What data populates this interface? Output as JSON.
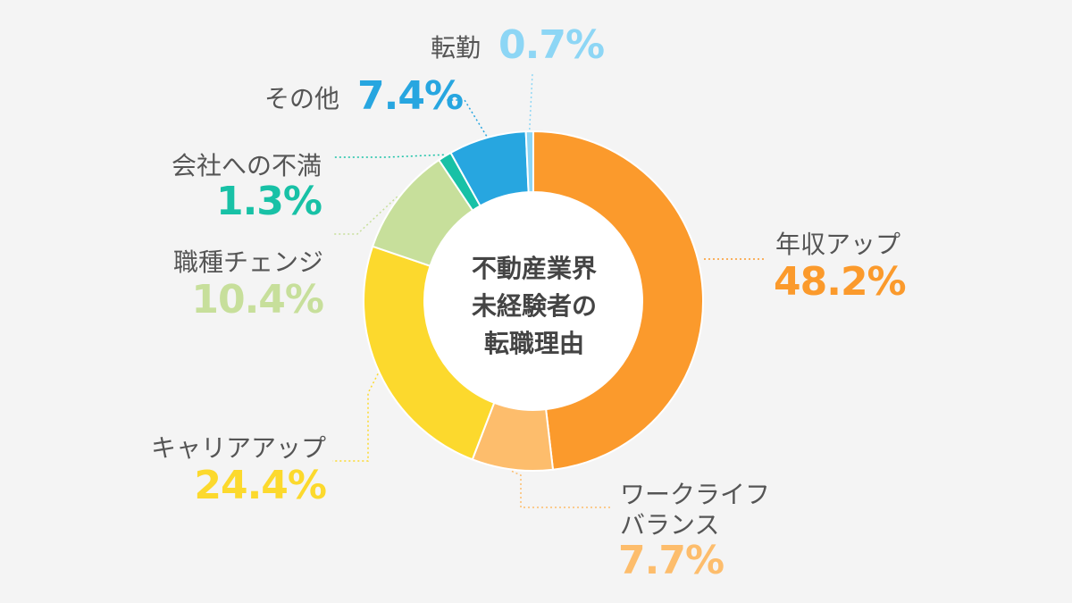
{
  "chart_data": {
    "type": "pie",
    "center_text": [
      "不動産業界",
      "未経験者の",
      "転職理由"
    ],
    "unit": "%",
    "slices": [
      {
        "label": "年収アップ",
        "value": 48.2,
        "value_text": "48.2%",
        "color": "#fb9a2c"
      },
      {
        "label": "ワークライフバランス",
        "label_lines": [
          "ワークライフ",
          "バランス"
        ],
        "value": 7.7,
        "value_text": "7.7%",
        "color": "#fdbd6c"
      },
      {
        "label": "キャリアアップ",
        "value": 24.4,
        "value_text": "24.4%",
        "color": "#fcd92d"
      },
      {
        "label": "職種チェンジ",
        "value": 10.4,
        "value_text": "10.4%",
        "color": "#c7df9b"
      },
      {
        "label": "会社への不満",
        "value": 1.3,
        "value_text": "1.3%",
        "color": "#18c1a6"
      },
      {
        "label": "その他",
        "value": 7.4,
        "value_text": "7.4%",
        "color": "#27a6e0"
      },
      {
        "label": "転勤",
        "value": 0.7,
        "value_text": "0.7%",
        "color": "#8dd6f5"
      }
    ]
  }
}
